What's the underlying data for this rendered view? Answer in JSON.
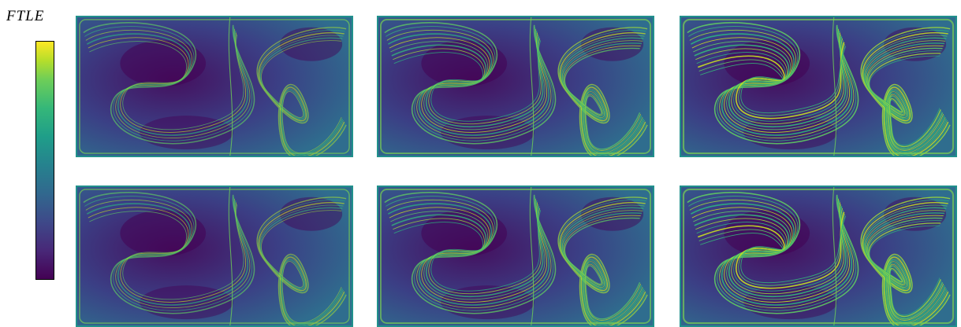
{
  "colorbar": {
    "label": "FTLE",
    "colormap": "viridis",
    "colors": [
      "#440154",
      "#482878",
      "#3e4989",
      "#31688e",
      "#26828e",
      "#1f9e89",
      "#35b779",
      "#6ece58",
      "#b5de2b",
      "#fde725"
    ]
  },
  "panels": [
    {
      "id": "top-1",
      "density": 1
    },
    {
      "id": "top-2",
      "density": 2
    },
    {
      "id": "top-3",
      "density": 3
    },
    {
      "id": "bottom-1",
      "density": 1
    },
    {
      "id": "bottom-2",
      "density": 2
    },
    {
      "id": "bottom-3",
      "density": 3
    }
  ]
}
